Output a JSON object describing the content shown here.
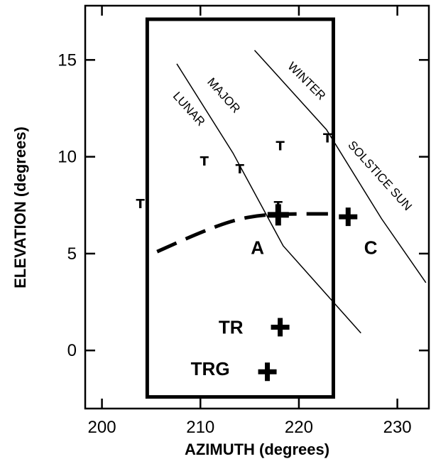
{
  "chart_data": {
    "type": "scatter",
    "title": "",
    "xlabel": "AZIMUTH  (degrees)",
    "ylabel": "ELEVATION  (degrees)",
    "xlim": [
      198.3,
      233.2
    ],
    "ylim": [
      -3.0,
      17.8
    ],
    "x_ticks": [
      200,
      210,
      220,
      230
    ],
    "y_ticks": [
      0,
      5,
      10,
      15
    ],
    "grid": false,
    "legend": "none",
    "box": {
      "x0": 204.6,
      "x1": 223.5,
      "y0": -2.4,
      "y1": 17.1
    },
    "tracks": [
      {
        "name": "LUNAR MAJOR",
        "label_words": [
          "LUNAR",
          "MAJOR"
        ],
        "points": [
          [
            207.6,
            14.8
          ],
          [
            213.3,
            10.2
          ],
          [
            218.4,
            5.4
          ],
          [
            226.3,
            0.9
          ]
        ]
      },
      {
        "name": "WINTER SOLSTICE SUN",
        "label_words": [
          "WINTER",
          "SOLSTICE SUN"
        ],
        "points": [
          [
            215.5,
            15.5
          ],
          [
            222.8,
            11.4
          ],
          [
            228.4,
            6.8
          ],
          [
            232.9,
            3.5
          ]
        ]
      }
    ],
    "dashed_curve": {
      "points": [
        [
          205.6,
          5.1
        ],
        [
          210.0,
          6.1
        ],
        [
          213.5,
          6.75
        ],
        [
          216.3,
          7.0
        ],
        [
          219.0,
          7.05
        ],
        [
          223.5,
          7.05
        ]
      ]
    },
    "markers": [
      {
        "text": "T",
        "x": 203.9,
        "y": 7.6
      },
      {
        "text": "T",
        "x": 210.4,
        "y": 9.8
      },
      {
        "text": "T",
        "x": 214.0,
        "y": 9.4
      },
      {
        "text": "T",
        "x": 218.1,
        "y": 10.6
      },
      {
        "text": "T",
        "x": 222.9,
        "y": 11.0
      },
      {
        "text": "T",
        "x": 217.9,
        "y": 7.5
      }
    ],
    "crosses": [
      {
        "label": "A",
        "x": 217.9,
        "y": 7.0,
        "label_x": 215.8,
        "label_y": 5.3
      },
      {
        "label": "C",
        "x": 225.0,
        "y": 6.9,
        "label_x": 227.3,
        "label_y": 5.3
      },
      {
        "label": "TR",
        "x": 218.1,
        "y": 1.2,
        "label_x": 213.1,
        "label_y": 1.2
      },
      {
        "label": "TRG",
        "x": 216.8,
        "y": -1.1,
        "label_x": 211.0,
        "label_y": -0.95
      }
    ]
  }
}
